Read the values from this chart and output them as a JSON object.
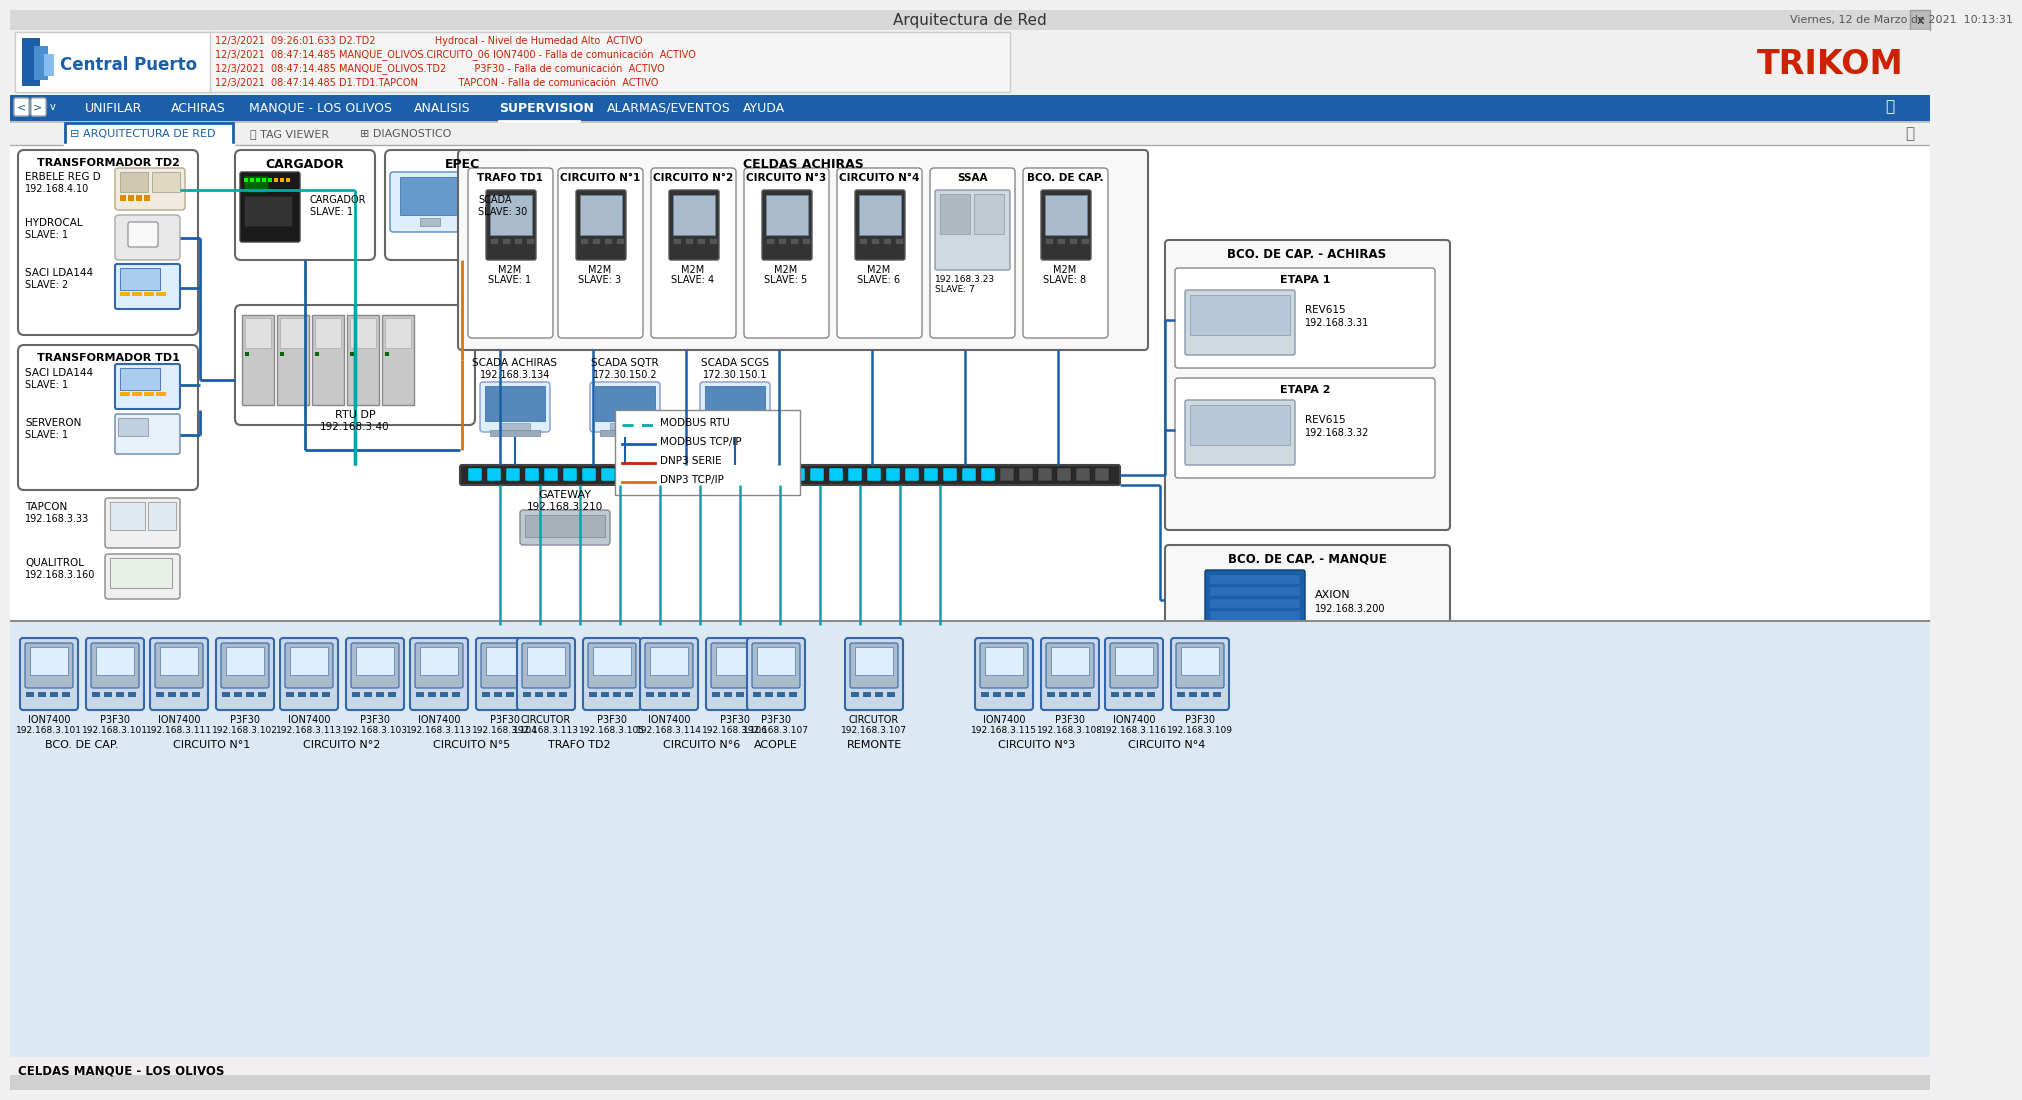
{
  "title": "Arquitectura de Red",
  "datetime": "Viernes, 12 de Marzo de 2021  10:13:31",
  "bg_top": "#e0e0e0",
  "bg_header": "#f0f0f0",
  "bg_nav": "#1a5fa8",
  "bg_content": "#ffffff",
  "bg_bottom": "#dce8f4",
  "blue_dark": "#1a5fa8",
  "blue_med": "#2176c0",
  "teal": "#00b0b0",
  "orange": "#c87820",
  "red_alert": "#cc2200",
  "alert1": "12/3/2021  09:26:01.633 D2.TD2",
  "alert1b": "Hydrocal - Nivel de Humedad Alto  ACTIVO",
  "alert2": "12/3/2021  08:47:14.485 MANQUE_OLIVOS.CIRCUITO_06 ION7400 - Falla de comunicación  ACTIVO",
  "alert3": "12/3/2021  08:47:14.485 MANQUE_OLIVOS.TD2         P3F30 - Falla de comunicación  ACTIVO",
  "alert4": "12/3/2021  08:47:14.485 D1.TD1.TAPCON             TAPCON - Falla de comunicación  ACTIVO",
  "nav_items": [
    "UNIFILAR",
    "ACHIRAS",
    "MANQUE - LOS OLIVOS",
    "ANALISIS",
    "SUPERVISION",
    "ALARMAS/EVENTOS",
    "AYUDA"
  ]
}
